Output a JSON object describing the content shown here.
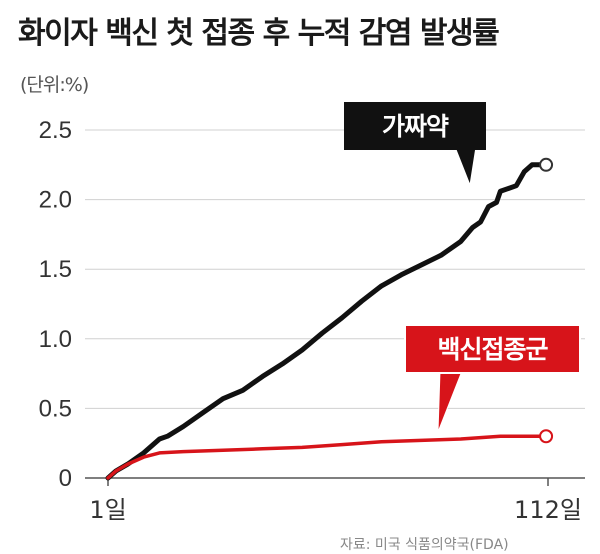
{
  "chart_data": {
    "type": "line",
    "title": "화이자 백신 첫 접종 후 누적 감염 발생률",
    "unit_label": "(단위:%)",
    "ylim": [
      0,
      2.5
    ],
    "y_ticks": [
      "2.5",
      "2.0",
      "1.5",
      "1.0",
      "0.5",
      "0"
    ],
    "x_tick_labels": [
      "1일",
      "112일"
    ],
    "xlim": [
      1,
      112
    ],
    "grid": true,
    "series": [
      {
        "name": "가짜약",
        "color": "#111111",
        "x": [
          1,
          3,
          6,
          10,
          14,
          16,
          20,
          25,
          30,
          35,
          40,
          45,
          50,
          55,
          60,
          65,
          70,
          75,
          80,
          85,
          90,
          93,
          95,
          97,
          99,
          100,
          102,
          104,
          106,
          108,
          110
        ],
        "y": [
          0,
          0.05,
          0.1,
          0.18,
          0.28,
          0.3,
          0.37,
          0.47,
          0.57,
          0.63,
          0.73,
          0.82,
          0.92,
          1.04,
          1.15,
          1.27,
          1.38,
          1.46,
          1.53,
          1.6,
          1.7,
          1.8,
          1.84,
          1.95,
          1.98,
          2.06,
          2.08,
          2.1,
          2.2,
          2.25,
          2.25
        ]
      },
      {
        "name": "백신접종군",
        "color": "#d7141a",
        "x": [
          1,
          3,
          6,
          10,
          14,
          20,
          30,
          40,
          50,
          60,
          70,
          80,
          90,
          95,
          100,
          105,
          110
        ],
        "y": [
          0,
          0.05,
          0.1,
          0.15,
          0.18,
          0.19,
          0.2,
          0.21,
          0.22,
          0.24,
          0.26,
          0.27,
          0.28,
          0.29,
          0.3,
          0.3,
          0.3
        ]
      }
    ]
  },
  "footnote": "자료: 미국 식품의약국(FDA)"
}
